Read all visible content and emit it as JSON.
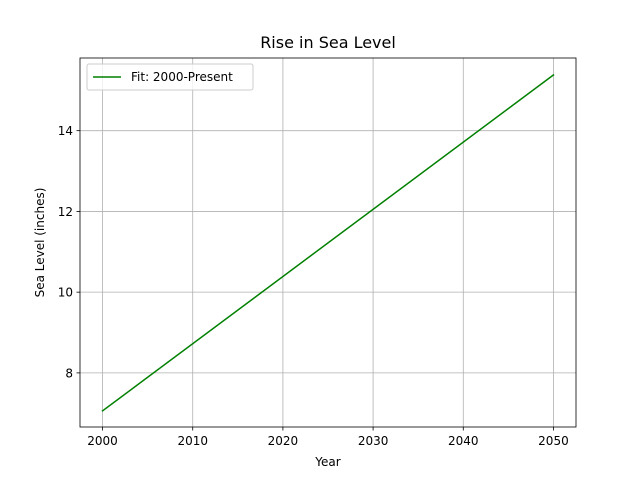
{
  "chart_data": {
    "type": "line",
    "title": "Rise in Sea Level",
    "xlabel": "Year",
    "ylabel": "Sea Level (inches)",
    "xlim": [
      1997.5,
      2052.5
    ],
    "ylim": [
      6.66,
      15.8
    ],
    "x_ticks": [
      2000,
      2010,
      2020,
      2030,
      2040,
      2050
    ],
    "y_ticks": [
      8,
      10,
      12,
      14
    ],
    "grid": true,
    "legend_position": "top-left",
    "series": [
      {
        "name": "Fit: 2000-Present",
        "color": "#008000",
        "x": [
          2000,
          2050
        ],
        "y": [
          7.06,
          15.38
        ]
      }
    ]
  }
}
